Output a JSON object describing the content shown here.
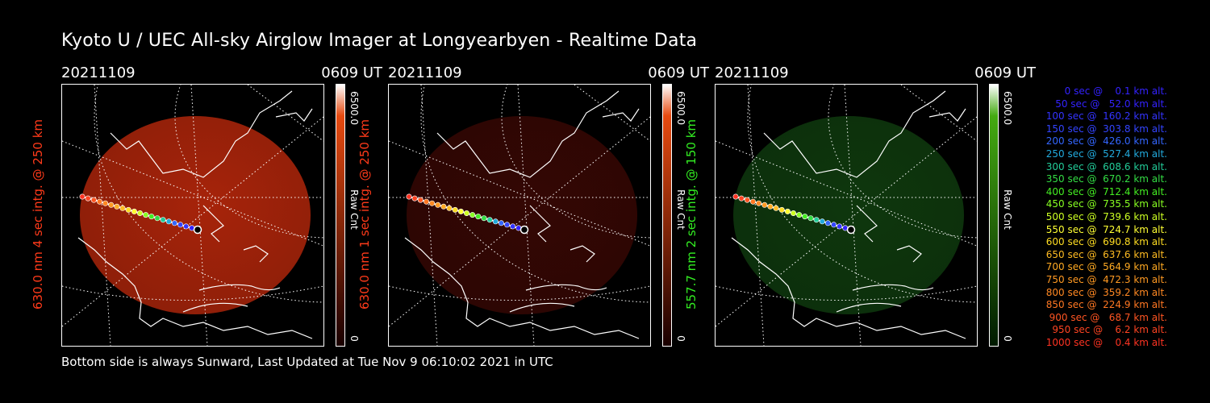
{
  "title": "Kyoto U / UEC All-sky Airglow Imager at Longyearbyen - Realtime Data",
  "footer": "Bottom side is always Sunward, Last Updated at Tue Nov  9 06:10:02 2021 in UTC",
  "panels": [
    {
      "date": "20211109",
      "time": "0609 UT",
      "ylabel": "630.0 nm 4 sec intg. @ 250 km",
      "label_color": "#ff3a1a",
      "colorbar_max": "6500.0",
      "colorbar_label": "Raw Cnt",
      "colorbar_min": "0",
      "glow_color": "#c42a0c",
      "glow_opacity": 0.85,
      "colorbar_top_color": "#ffffff",
      "colorbar_mid_color": "#e64a10",
      "colorbar_bottom_color": "#1a0000"
    },
    {
      "date": "20211109",
      "time": "0609 UT",
      "ylabel": "630.0 nm 1 sec intg. @ 250 km",
      "label_color": "#ff3a1a",
      "colorbar_max": "6500.0",
      "colorbar_label": "Raw Cnt",
      "colorbar_min": "0",
      "glow_color": "#3a0804",
      "glow_opacity": 0.9,
      "colorbar_top_color": "#ffffff",
      "colorbar_mid_color": "#e64a10",
      "colorbar_bottom_color": "#1a0000"
    },
    {
      "date": "20211109",
      "time": "0609 UT",
      "ylabel": "557.7 nm 2 sec intg. @ 150 km",
      "label_color": "#33ee22",
      "colorbar_max": "6500.0",
      "colorbar_label": "Raw Cnt",
      "colorbar_min": "0",
      "glow_color": "#0f3a0e",
      "glow_opacity": 0.95,
      "colorbar_top_color": "#ffffff",
      "colorbar_mid_color": "#44aa11",
      "colorbar_bottom_color": "#001a00"
    }
  ],
  "legend": [
    {
      "text": "   0 sec @    0.1 km alt.",
      "color": "#3322ff"
    },
    {
      "text": "  50 sec @   52.0 km alt.",
      "color": "#3322ff"
    },
    {
      "text": " 100 sec @  160.2 km alt.",
      "color": "#3333ff"
    },
    {
      "text": " 150 sec @  303.8 km alt.",
      "color": "#3344ff"
    },
    {
      "text": " 200 sec @  426.0 km alt.",
      "color": "#3366ff"
    },
    {
      "text": " 250 sec @  527.4 km alt.",
      "color": "#22aadd"
    },
    {
      "text": " 300 sec @  608.6 km alt.",
      "color": "#22cc99"
    },
    {
      "text": " 350 sec @  670.2 km alt.",
      "color": "#33dd44"
    },
    {
      "text": " 400 sec @  712.4 km alt.",
      "color": "#44ee22"
    },
    {
      "text": " 450 sec @  735.5 km alt.",
      "color": "#88ff22"
    },
    {
      "text": " 500 sec @  739.6 km alt.",
      "color": "#ccff22"
    },
    {
      "text": " 550 sec @  724.7 km alt.",
      "color": "#ffff33"
    },
    {
      "text": " 600 sec @  690.8 km alt.",
      "color": "#ffdd22"
    },
    {
      "text": " 650 sec @  637.6 km alt.",
      "color": "#ffbb22"
    },
    {
      "text": " 700 sec @  564.9 km alt.",
      "color": "#ffaa22"
    },
    {
      "text": " 750 sec @  472.3 km alt.",
      "color": "#ff9922"
    },
    {
      "text": " 800 sec @  359.2 km alt.",
      "color": "#ff8822"
    },
    {
      "text": " 850 sec @  224.9 km alt.",
      "color": "#ff7722"
    },
    {
      "text": " 900 sec @   68.7 km alt.",
      "color": "#ff5522"
    },
    {
      "text": " 950 sec @    6.2 km alt.",
      "color": "#ff4422"
    },
    {
      "text": "1000 sec @    0.4 km alt.",
      "color": "#ff3322"
    }
  ]
}
